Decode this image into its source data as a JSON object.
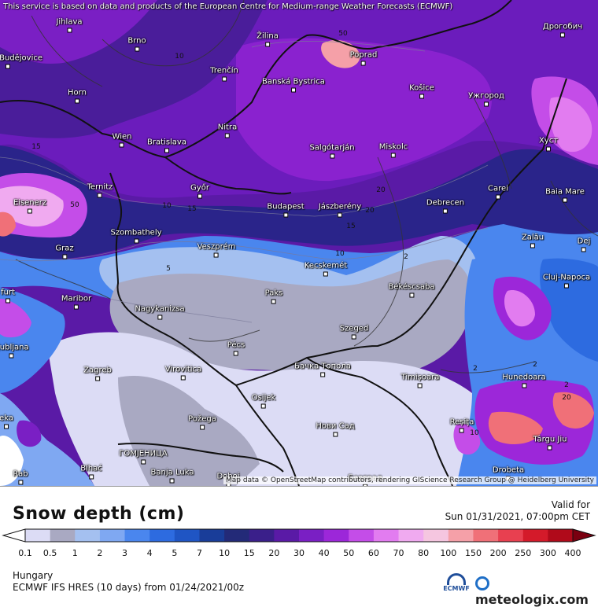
{
  "notice": "This service is based on data and products of the European Centre for Medium-range Weather Forecasts (ECMWF)",
  "attribution": "Map data © OpenStreetMap contributors, rendering GIScience Research Group @ Heidelberg University",
  "legend": {
    "title": "Snow depth (cm)",
    "valid_label": "Valid for",
    "valid_time": "Sun 01/31/2021, 07:00pm CET",
    "region": "Hungary",
    "model_run": "ECMWF IFS HRES (10 days) from 01/24/2021/00z",
    "ecmwf_logo_text": "ECMWF",
    "brand": "meteologix.com",
    "scale_labels": [
      "0.1",
      "0.5",
      "1",
      "2",
      "3",
      "4",
      "5",
      "7",
      "10",
      "15",
      "20",
      "30",
      "40",
      "50",
      "60",
      "70",
      "80",
      "100",
      "150",
      "200",
      "250",
      "300",
      "400"
    ],
    "scale_colors": [
      "#dcdcf5",
      "#a9a9c2",
      "#a4c0f0",
      "#7fa8f2",
      "#4a86ee",
      "#2d6be0",
      "#1f55c4",
      "#193d99",
      "#232a78",
      "#3a1f8a",
      "#5a1aa6",
      "#7a1fc4",
      "#9c27d9",
      "#c44de8",
      "#e27cf0",
      "#f0aaf0",
      "#f5c6e0",
      "#f5a0a8",
      "#f07078",
      "#e84050",
      "#d41a2a",
      "#b00a1a",
      "#7a0010"
    ]
  },
  "map": {
    "cities": [
      {
        "name": "Jihlava"
      },
      {
        "name": "Brno"
      },
      {
        "name": "Žilina"
      },
      {
        "name": "Poprad"
      },
      {
        "name": "Дрогобич"
      },
      {
        "name": "České Budějovice"
      },
      {
        "name": "Trenčín"
      },
      {
        "name": "Banská Bystrica"
      },
      {
        "name": "Košice"
      },
      {
        "name": "Ужгород"
      },
      {
        "name": "Horn"
      },
      {
        "name": "Nitra"
      },
      {
        "name": "Wien"
      },
      {
        "name": "Bratislava"
      },
      {
        "name": "Salgótarján"
      },
      {
        "name": "Miskolc"
      },
      {
        "name": "Хуст"
      },
      {
        "name": "Ternitz"
      },
      {
        "name": "Győr"
      },
      {
        "name": "Carei"
      },
      {
        "name": "Baia Mare"
      },
      {
        "name": "Eisenerz"
      },
      {
        "name": "Budapest"
      },
      {
        "name": "Jászberény"
      },
      {
        "name": "Debrecen"
      },
      {
        "name": "Szombathely"
      },
      {
        "name": "Zalău"
      },
      {
        "name": "Dej"
      },
      {
        "name": "Graz"
      },
      {
        "name": "Veszprém"
      },
      {
        "name": "Kecskemét"
      },
      {
        "name": "Cluj-Napoca"
      },
      {
        "name": "Maribor"
      },
      {
        "name": "Paks"
      },
      {
        "name": "Békéscsaba"
      },
      {
        "name": "Nagykanizsa"
      },
      {
        "name": "Szeged"
      },
      {
        "name": "Pécs"
      },
      {
        "name": "Бачка Топола"
      },
      {
        "name": "Zagreb"
      },
      {
        "name": "Virovitica"
      },
      {
        "name": "Timișoara"
      },
      {
        "name": "Hunedoara"
      },
      {
        "name": "Osijek"
      },
      {
        "name": "Požega"
      },
      {
        "name": "Нови Сад"
      },
      {
        "name": "Reșița"
      },
      {
        "name": "Târgu Jiu"
      },
      {
        "name": "ГОМЈЕНИЦА"
      },
      {
        "name": "Bihać"
      },
      {
        "name": "Banja Luka"
      },
      {
        "name": "Doboj"
      },
      {
        "name": "Београд"
      },
      {
        "name": "Drobeta"
      },
      {
        "name": "Rab"
      },
      {
        "name": "Ljubljana"
      },
      {
        "name": "furt"
      },
      {
        "name": "eka"
      }
    ],
    "contour_labels": [
      "10",
      "15",
      "20",
      "50",
      "50",
      "10",
      "15",
      "20",
      "15",
      "10",
      "5",
      "2",
      "2",
      "2",
      "2",
      "10",
      "20"
    ]
  }
}
